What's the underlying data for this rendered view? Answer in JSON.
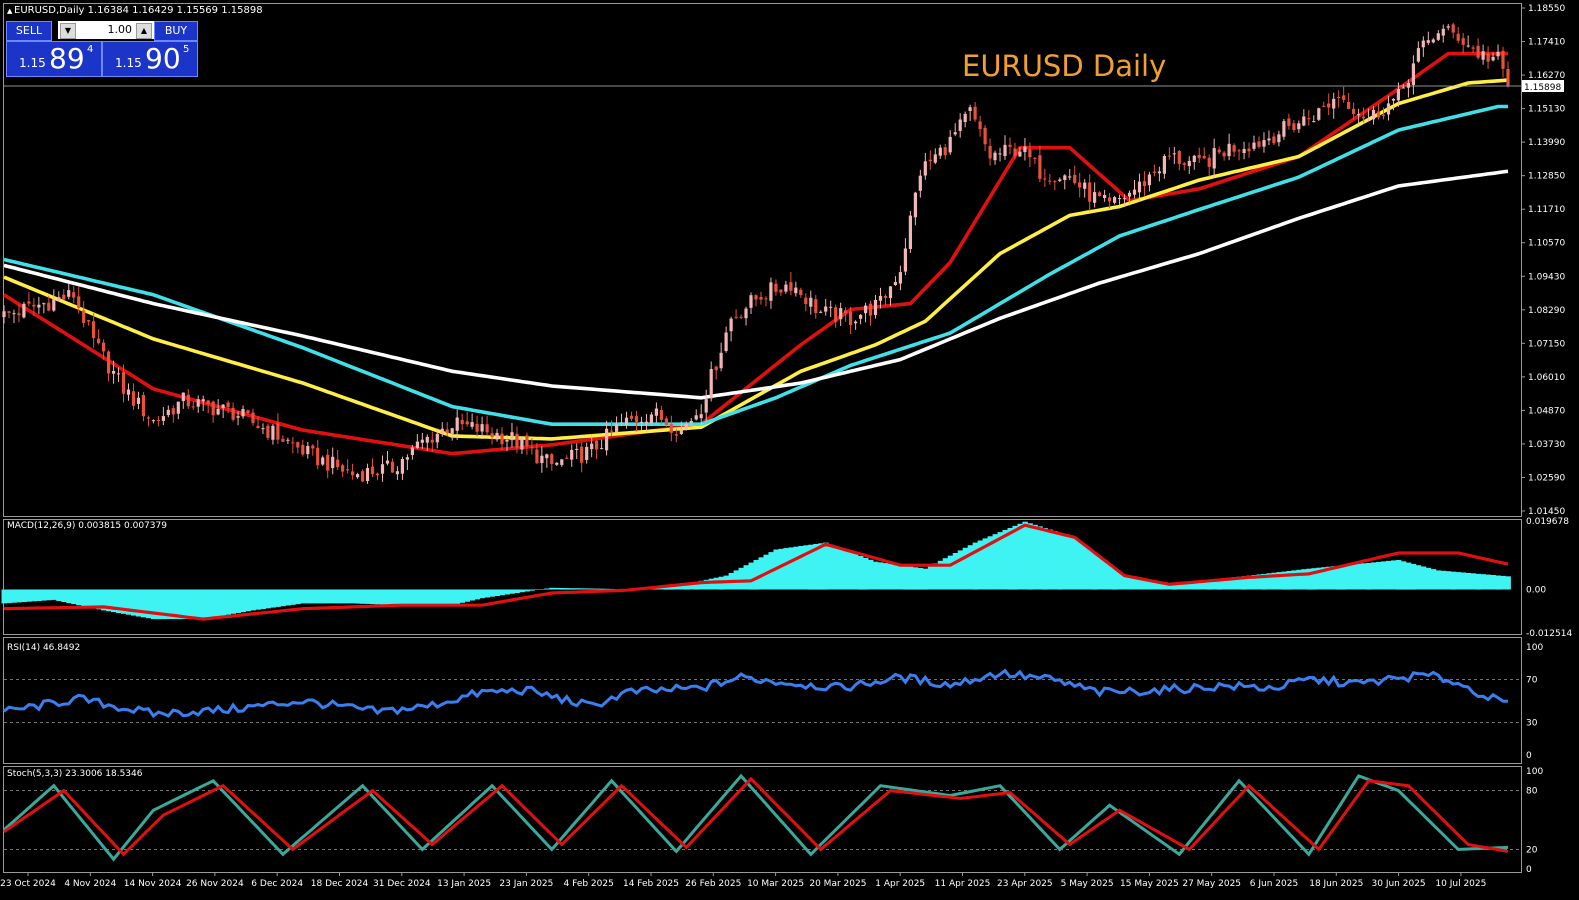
{
  "header": {
    "symbol_line": "EURUSD,Daily  1.16384 1.16429 1.15569 1.15898"
  },
  "trade_panel": {
    "sell_label": "SELL",
    "buy_label": "BUY",
    "lot": "1.00",
    "sell_prefix": "1.15",
    "sell_big": "89",
    "sell_sup": "4",
    "buy_prefix": "1.15",
    "buy_big": "90",
    "buy_sup": "5"
  },
  "chart_data": [
    {
      "type": "candlestick",
      "title": "EURUSD Daily",
      "current_price_label": "1.15898",
      "current_price": 1.15898,
      "ylim": [
        1.0145,
        1.1855
      ],
      "y_ticks": [
        "1.18550",
        "1.17410",
        "1.16270",
        "1.15130",
        "1.13990",
        "1.12850",
        "1.11710",
        "1.10570",
        "1.09430",
        "1.08290",
        "1.07150",
        "1.06010",
        "1.04870",
        "1.03730",
        "1.02590",
        "1.01450"
      ],
      "x_labels": [
        "23 Oct 2024",
        "4 Nov 2024",
        "14 Nov 2024",
        "26 Nov 2024",
        "6 Dec 2024",
        "18 Dec 2024",
        "31 Dec 2024",
        "13 Jan 2025",
        "23 Jan 2025",
        "4 Feb 2025",
        "14 Feb 2025",
        "26 Feb 2025",
        "10 Mar 2025",
        "20 Mar 2025",
        "1 Apr 2025",
        "11 Apr 2025",
        "23 Apr 2025",
        "5 May 2025",
        "15 May 2025",
        "27 May 2025",
        "6 Jun 2025",
        "18 Jun 2025",
        "30 Jun 2025",
        "10 Jul 2025"
      ],
      "colors": {
        "up": "#f2b6b6",
        "down": "#e8513c",
        "ma_red": "#e01010",
        "ma_yellow": "#ffee44",
        "ma_cyan": "#40e0e8",
        "ma_white": "#ffffff"
      },
      "close_anchors": [
        [
          0,
          1.081
        ],
        [
          6,
          1.084
        ],
        [
          14,
          1.088
        ],
        [
          18,
          1.072
        ],
        [
          24,
          1.056
        ],
        [
          30,
          1.045
        ],
        [
          36,
          1.052
        ],
        [
          46,
          1.048
        ],
        [
          54,
          1.041
        ],
        [
          62,
          1.033
        ],
        [
          70,
          1.027
        ],
        [
          78,
          1.029
        ],
        [
          84,
          1.038
        ],
        [
          90,
          1.044
        ],
        [
          96,
          1.042
        ],
        [
          102,
          1.039
        ],
        [
          110,
          1.03
        ],
        [
          118,
          1.035
        ],
        [
          124,
          1.044
        ],
        [
          130,
          1.048
        ],
        [
          136,
          1.042
        ],
        [
          140,
          1.05
        ],
        [
          146,
          1.08
        ],
        [
          152,
          1.088
        ],
        [
          158,
          1.092
        ],
        [
          164,
          1.082
        ],
        [
          170,
          1.08
        ],
        [
          176,
          1.085
        ],
        [
          180,
          1.097
        ],
        [
          184,
          1.13
        ],
        [
          190,
          1.14
        ],
        [
          194,
          1.15
        ],
        [
          198,
          1.135
        ],
        [
          204,
          1.138
        ],
        [
          208,
          1.13
        ],
        [
          214,
          1.128
        ],
        [
          218,
          1.122
        ],
        [
          222,
          1.118
        ],
        [
          228,
          1.125
        ],
        [
          234,
          1.135
        ],
        [
          240,
          1.132
        ],
        [
          246,
          1.138
        ],
        [
          252,
          1.14
        ],
        [
          258,
          1.145
        ],
        [
          264,
          1.15
        ],
        [
          268,
          1.156
        ],
        [
          274,
          1.148
        ],
        [
          280,
          1.155
        ],
        [
          284,
          1.17
        ],
        [
          288,
          1.178
        ],
        [
          292,
          1.176
        ],
        [
          296,
          1.17
        ],
        [
          300,
          1.168
        ],
        [
          302,
          1.159
        ]
      ],
      "moving_averages": [
        {
          "color": "red",
          "anchors": [
            [
              0,
              1.088
            ],
            [
              30,
              1.056
            ],
            [
              60,
              1.042
            ],
            [
              90,
              1.034
            ],
            [
              110,
              1.037
            ],
            [
              140,
              1.044
            ],
            [
              160,
              1.071
            ],
            [
              170,
              1.083
            ],
            [
              182,
              1.085
            ],
            [
              190,
              1.099
            ],
            [
              204,
              1.138
            ],
            [
              214,
              1.138
            ],
            [
              226,
              1.12
            ],
            [
              240,
              1.124
            ],
            [
              260,
              1.135
            ],
            [
              280,
              1.158
            ],
            [
              290,
              1.17
            ],
            [
              302,
              1.17
            ]
          ]
        },
        {
          "color": "yellow",
          "anchors": [
            [
              0,
              1.094
            ],
            [
              30,
              1.073
            ],
            [
              60,
              1.058
            ],
            [
              90,
              1.04
            ],
            [
              110,
              1.039
            ],
            [
              140,
              1.043
            ],
            [
              160,
              1.062
            ],
            [
              175,
              1.071
            ],
            [
              185,
              1.079
            ],
            [
              200,
              1.102
            ],
            [
              214,
              1.115
            ],
            [
              224,
              1.118
            ],
            [
              240,
              1.127
            ],
            [
              260,
              1.135
            ],
            [
              280,
              1.153
            ],
            [
              294,
              1.16
            ],
            [
              302,
              1.161
            ]
          ]
        },
        {
          "color": "cyan",
          "anchors": [
            [
              0,
              1.1
            ],
            [
              30,
              1.088
            ],
            [
              60,
              1.07
            ],
            [
              90,
              1.05
            ],
            [
              110,
              1.044
            ],
            [
              140,
              1.044
            ],
            [
              155,
              1.053
            ],
            [
              170,
              1.064
            ],
            [
              190,
              1.075
            ],
            [
              210,
              1.095
            ],
            [
              224,
              1.108
            ],
            [
              240,
              1.117
            ],
            [
              260,
              1.128
            ],
            [
              280,
              1.144
            ],
            [
              300,
              1.152
            ],
            [
              302,
              1.152
            ]
          ]
        },
        {
          "color": "white",
          "anchors": [
            [
              0,
              1.098
            ],
            [
              30,
              1.085
            ],
            [
              60,
              1.074
            ],
            [
              90,
              1.062
            ],
            [
              110,
              1.057
            ],
            [
              140,
              1.053
            ],
            [
              160,
              1.058
            ],
            [
              180,
              1.066
            ],
            [
              200,
              1.08
            ],
            [
              220,
              1.092
            ],
            [
              240,
              1.102
            ],
            [
              260,
              1.114
            ],
            [
              280,
              1.125
            ],
            [
              302,
              1.13
            ]
          ]
        }
      ]
    },
    {
      "type": "histogram-line",
      "title": "MACD(12,26,9) 0.003815 0.007379",
      "ylim": [
        -0.0125,
        0.0197
      ],
      "y_ticks": [
        "0.019678",
        "0.00",
        "-0.012514"
      ],
      "colors": {
        "histogram": "#3ff3f3",
        "signal": "#e01010"
      },
      "macd_anchors": [
        [
          0,
          -0.004
        ],
        [
          10,
          -0.003
        ],
        [
          20,
          -0.006
        ],
        [
          30,
          -0.0085
        ],
        [
          40,
          -0.0085
        ],
        [
          50,
          -0.006
        ],
        [
          60,
          -0.004
        ],
        [
          70,
          -0.004
        ],
        [
          80,
          -0.0045
        ],
        [
          90,
          -0.0045
        ],
        [
          96,
          -0.0025
        ],
        [
          110,
          0.0005
        ],
        [
          125,
          0.0001
        ],
        [
          135,
          0.001
        ],
        [
          145,
          0.004
        ],
        [
          155,
          0.0115
        ],
        [
          165,
          0.0135
        ],
        [
          175,
          0.008
        ],
        [
          185,
          0.006
        ],
        [
          195,
          0.0135
        ],
        [
          205,
          0.0195
        ],
        [
          215,
          0.015
        ],
        [
          225,
          0.004
        ],
        [
          234,
          0.0015
        ],
        [
          250,
          0.004
        ],
        [
          262,
          0.006
        ],
        [
          280,
          0.0085
        ],
        [
          288,
          0.0055
        ],
        [
          302,
          0.0038
        ]
      ],
      "signal_anchors": [
        [
          0,
          -0.0055
        ],
        [
          20,
          -0.005
        ],
        [
          40,
          -0.0085
        ],
        [
          60,
          -0.0055
        ],
        [
          80,
          -0.0045
        ],
        [
          96,
          -0.0045
        ],
        [
          110,
          -0.001
        ],
        [
          125,
          -0.0002
        ],
        [
          140,
          0.002
        ],
        [
          150,
          0.0025
        ],
        [
          165,
          0.013
        ],
        [
          180,
          0.007
        ],
        [
          190,
          0.007
        ],
        [
          205,
          0.0185
        ],
        [
          215,
          0.015
        ],
        [
          225,
          0.004
        ],
        [
          234,
          0.0015
        ],
        [
          250,
          0.0035
        ],
        [
          262,
          0.0045
        ],
        [
          280,
          0.0105
        ],
        [
          292,
          0.0105
        ],
        [
          302,
          0.0073
        ]
      ]
    },
    {
      "type": "line",
      "title": "RSI(14) 46.8492",
      "ylim": [
        0,
        100
      ],
      "y_ticks": [
        "100",
        "70",
        "30",
        "0"
      ],
      "levels": [
        70,
        30
      ],
      "color": "#3a7ff0",
      "anchors": [
        [
          0,
          40
        ],
        [
          15,
          52
        ],
        [
          30,
          38
        ],
        [
          45,
          42
        ],
        [
          60,
          50
        ],
        [
          75,
          40
        ],
        [
          85,
          45
        ],
        [
          96,
          58
        ],
        [
          105,
          60
        ],
        [
          118,
          45
        ],
        [
          125,
          58
        ],
        [
          140,
          62
        ],
        [
          148,
          72
        ],
        [
          155,
          68
        ],
        [
          168,
          62
        ],
        [
          180,
          72
        ],
        [
          190,
          65
        ],
        [
          200,
          76
        ],
        [
          210,
          70
        ],
        [
          220,
          58
        ],
        [
          232,
          60
        ],
        [
          245,
          64
        ],
        [
          255,
          62
        ],
        [
          262,
          70
        ],
        [
          272,
          66
        ],
        [
          285,
          74
        ],
        [
          290,
          70
        ],
        [
          300,
          50
        ],
        [
          302,
          47
        ]
      ]
    },
    {
      "type": "line",
      "title": "Stoch(5,3,3) 23.3006 18.5346",
      "ylim": [
        0,
        100
      ],
      "y_ticks": [
        "100",
        "80",
        "20",
        "0"
      ],
      "levels": [
        80,
        20
      ],
      "colors": {
        "main": "#3aa89a",
        "signal": "#e01010"
      },
      "main_anchors": [
        [
          0,
          40
        ],
        [
          10,
          85
        ],
        [
          22,
          10
        ],
        [
          30,
          60
        ],
        [
          42,
          90
        ],
        [
          56,
          15
        ],
        [
          72,
          85
        ],
        [
          84,
          20
        ],
        [
          98,
          85
        ],
        [
          110,
          20
        ],
        [
          122,
          90
        ],
        [
          135,
          18
        ],
        [
          148,
          95
        ],
        [
          162,
          15
        ],
        [
          176,
          85
        ],
        [
          190,
          75
        ],
        [
          200,
          85
        ],
        [
          212,
          20
        ],
        [
          222,
          65
        ],
        [
          236,
          15
        ],
        [
          248,
          90
        ],
        [
          262,
          15
        ],
        [
          272,
          95
        ],
        [
          280,
          80
        ],
        [
          292,
          20
        ],
        [
          302,
          22
        ]
      ],
      "signal_anchors": [
        [
          0,
          38
        ],
        [
          12,
          80
        ],
        [
          24,
          15
        ],
        [
          32,
          55
        ],
        [
          44,
          85
        ],
        [
          58,
          20
        ],
        [
          74,
          80
        ],
        [
          86,
          25
        ],
        [
          100,
          85
        ],
        [
          112,
          25
        ],
        [
          124,
          85
        ],
        [
          137,
          22
        ],
        [
          150,
          92
        ],
        [
          164,
          20
        ],
        [
          178,
          80
        ],
        [
          192,
          72
        ],
        [
          202,
          78
        ],
        [
          214,
          25
        ],
        [
          224,
          60
        ],
        [
          238,
          20
        ],
        [
          250,
          85
        ],
        [
          264,
          20
        ],
        [
          274,
          90
        ],
        [
          282,
          85
        ],
        [
          294,
          25
        ],
        [
          302,
          18
        ]
      ]
    }
  ]
}
